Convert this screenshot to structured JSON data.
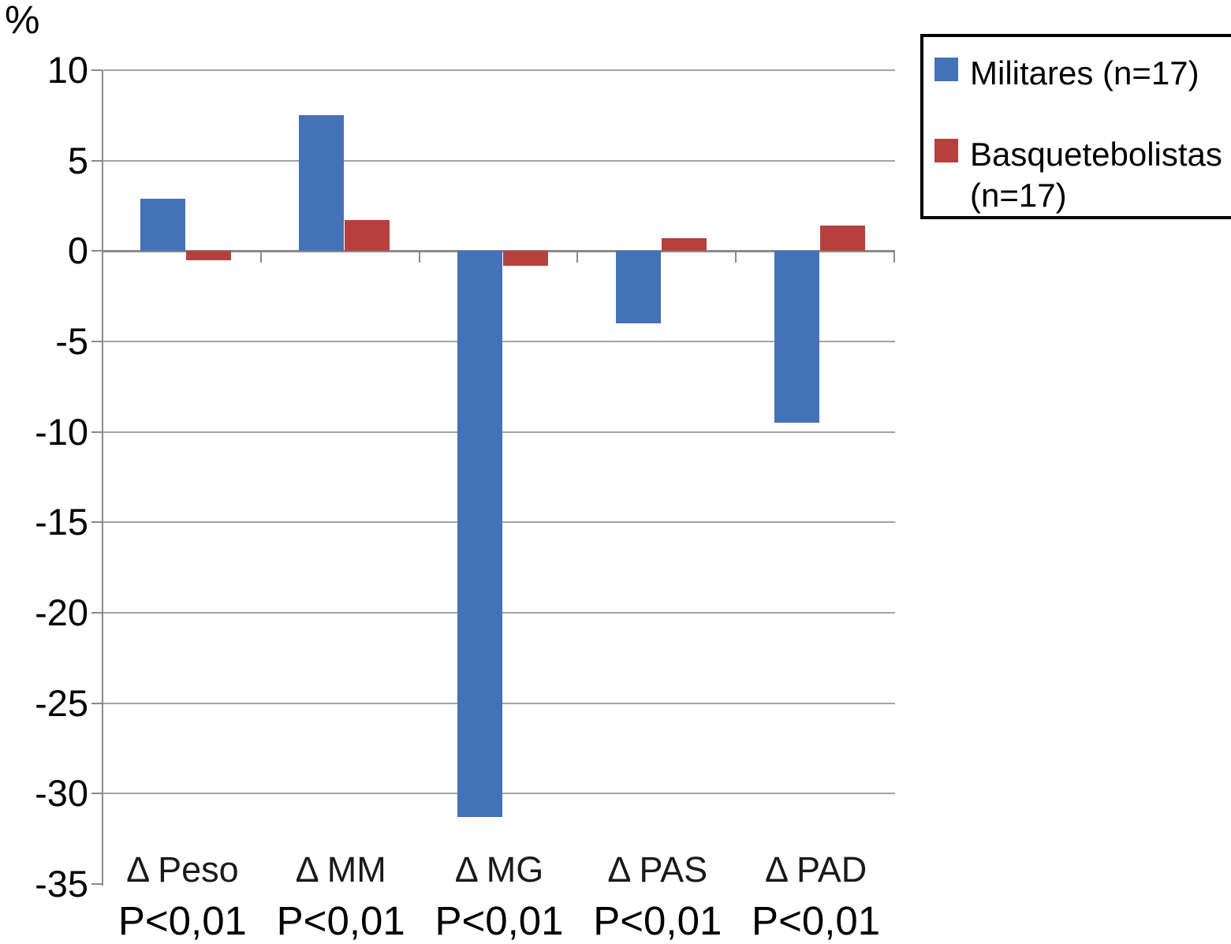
{
  "colors": {
    "militares": "#4472B8",
    "basquetebolistas": "#B7403E",
    "axis": "#8a8a8a",
    "gridline": "#a3a3a3",
    "legend_border": "#000000"
  },
  "legend": {
    "items": [
      {
        "label": "Militares (n=17)",
        "color_key": "militares"
      },
      {
        "label": "Basquetebolistas (n=17)",
        "color_key": "basquetebolistas"
      }
    ]
  },
  "chart_data": {
    "type": "bar",
    "title": "",
    "xlabel": "",
    "ylabel": "%",
    "ylim": [
      -35,
      10
    ],
    "ytick_step": 5,
    "yticks": [
      10,
      5,
      0,
      -5,
      -10,
      -15,
      -20,
      -25,
      -30,
      -35
    ],
    "grid": true,
    "legend_position": "top-right",
    "categories": [
      "Δ Peso",
      "Δ MM",
      "Δ MG",
      "Δ PAS",
      "Δ PAD"
    ],
    "category_sublabels": [
      "P<0,01",
      "P<0,01",
      "P<0,01",
      "P<0,01",
      "P<0,01"
    ],
    "series": [
      {
        "name": "Militares (n=17)",
        "color": "#4472B8",
        "values": [
          2.9,
          7.5,
          -31.3,
          -4.0,
          -9.5
        ]
      },
      {
        "name": "Basquetebolistas (n=17)",
        "color": "#B7403E",
        "values": [
          -0.5,
          1.7,
          -0.8,
          0.7,
          1.4
        ]
      }
    ]
  }
}
